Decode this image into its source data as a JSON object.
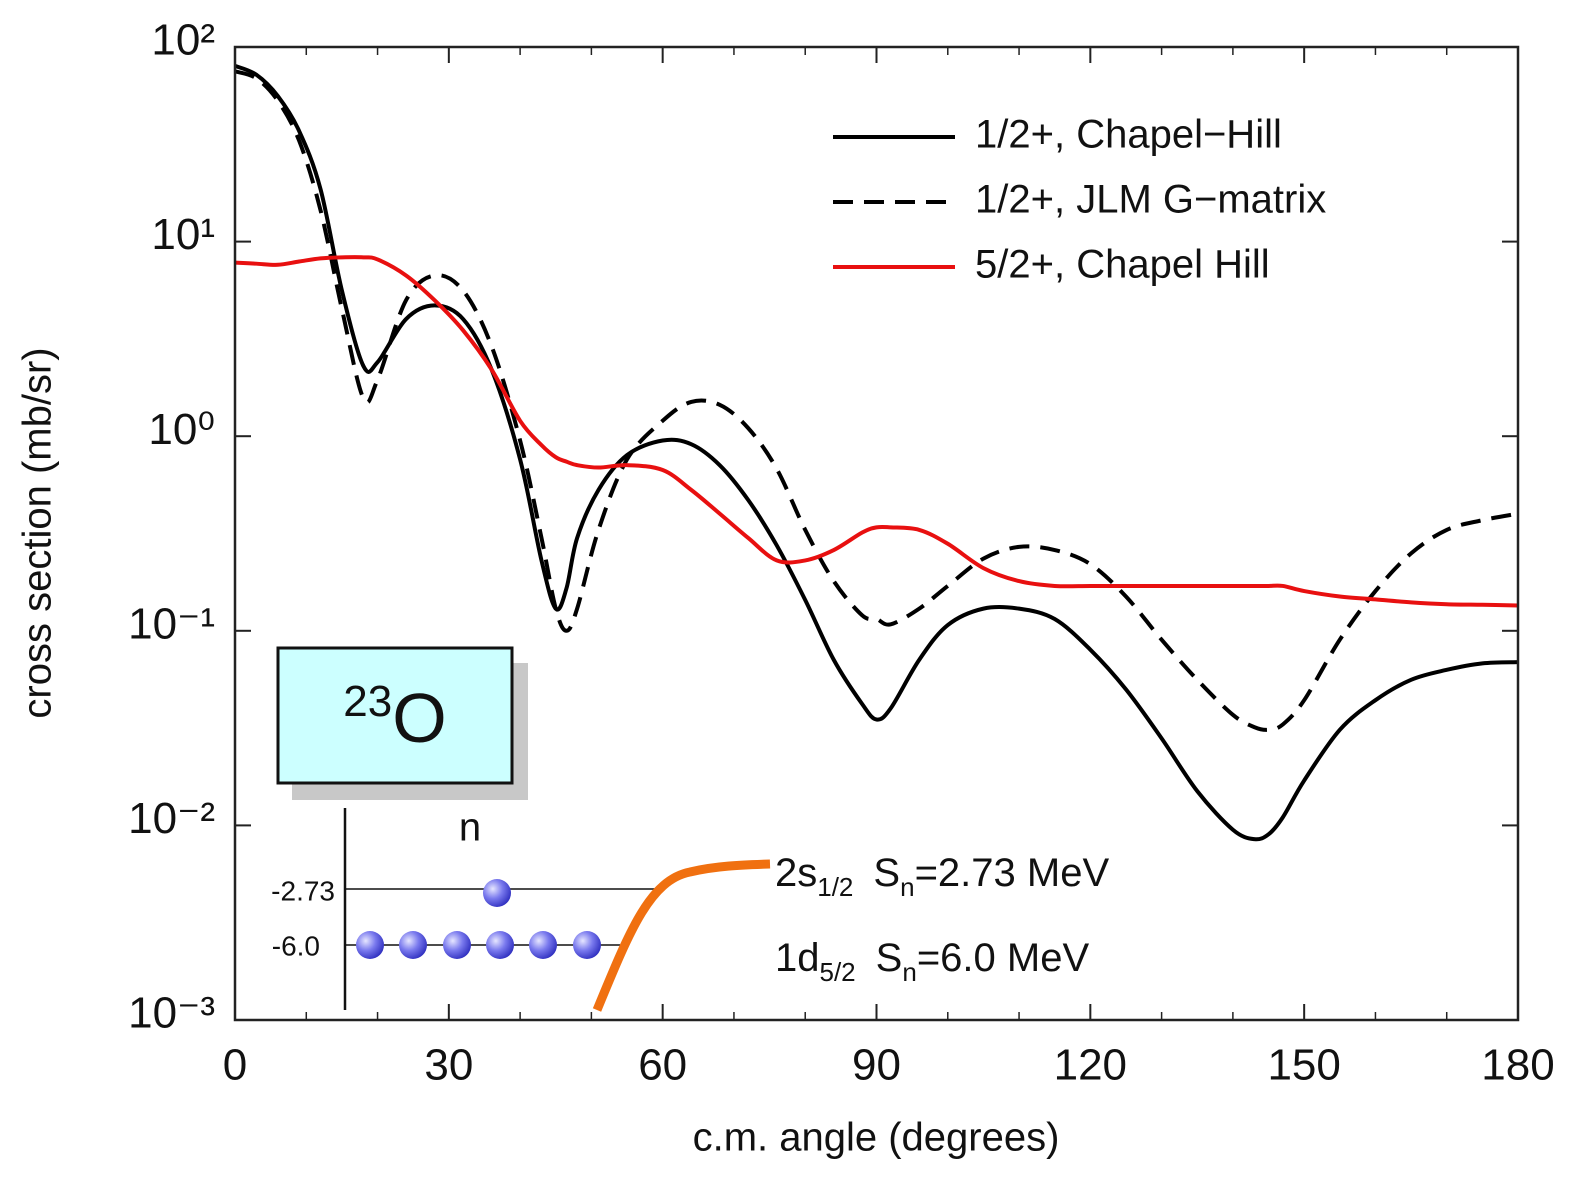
{
  "chart_data": {
    "type": "line",
    "xlabel": "c.m. angle  (degrees)",
    "ylabel": "cross section  (mb/sr)",
    "x": [
      0,
      3,
      6,
      9,
      12,
      15,
      18,
      20,
      24,
      28,
      32,
      36,
      40,
      43,
      45,
      46.5,
      48,
      51,
      55,
      60,
      64,
      68,
      72,
      76,
      80,
      84,
      88,
      90,
      92,
      96,
      100,
      105,
      110,
      115,
      120,
      125,
      130,
      135,
      140,
      143,
      145,
      147,
      150,
      155,
      160,
      165,
      170,
      175,
      180
    ],
    "series": [
      {
        "name": "1/2+, Chapel−Hill",
        "color": "#000000",
        "dash": "solid",
        "values": [
          80,
          72,
          56,
          37,
          18.6,
          5.6,
          2.3,
          2.4,
          4.0,
          4.7,
          4.0,
          2.2,
          0.76,
          0.23,
          0.13,
          0.165,
          0.3,
          0.53,
          0.8,
          0.95,
          0.91,
          0.71,
          0.47,
          0.275,
          0.144,
          0.071,
          0.042,
          0.035,
          0.04,
          0.071,
          0.107,
          0.13,
          0.13,
          0.115,
          0.08,
          0.05,
          0.028,
          0.015,
          0.0095,
          0.0085,
          0.009,
          0.011,
          0.017,
          0.031,
          0.044,
          0.056,
          0.063,
          0.068,
          0.069
        ]
      },
      {
        "name": "1/2+, JLM G−matrix",
        "color": "#000000",
        "dash": "dashed",
        "values": [
          75,
          69,
          53,
          33,
          14.5,
          4.5,
          1.57,
          1.95,
          5.0,
          6.7,
          5.6,
          2.9,
          0.95,
          0.3,
          0.13,
          0.1,
          0.13,
          0.33,
          0.76,
          1.2,
          1.5,
          1.45,
          1.1,
          0.68,
          0.33,
          0.18,
          0.12,
          0.115,
          0.108,
          0.13,
          0.17,
          0.235,
          0.27,
          0.26,
          0.22,
          0.15,
          0.09,
          0.056,
          0.037,
          0.032,
          0.031,
          0.033,
          0.044,
          0.09,
          0.16,
          0.25,
          0.33,
          0.37,
          0.4
        ]
      },
      {
        "name": "5/2+, Chapel Hill",
        "color": "#e81010",
        "dash": "solid",
        "values": [
          7.8,
          7.7,
          7.6,
          7.9,
          8.2,
          8.3,
          8.3,
          8.1,
          6.7,
          5.0,
          3.5,
          2.2,
          1.2,
          0.9,
          0.78,
          0.74,
          0.71,
          0.69,
          0.71,
          0.67,
          0.53,
          0.4,
          0.3,
          0.23,
          0.23,
          0.26,
          0.32,
          0.34,
          0.34,
          0.33,
          0.28,
          0.21,
          0.18,
          0.17,
          0.17,
          0.17,
          0.17,
          0.17,
          0.17,
          0.17,
          0.17,
          0.17,
          0.16,
          0.15,
          0.145,
          0.14,
          0.137,
          0.136,
          0.135
        ]
      }
    ],
    "xlim": [
      0,
      180
    ],
    "xticks": [
      0,
      30,
      60,
      90,
      120,
      150,
      180
    ],
    "xminorticks": [
      10,
      20,
      40,
      50,
      70,
      80,
      100,
      110,
      130,
      140,
      160,
      170
    ],
    "ylim": [
      0.001,
      100
    ],
    "yscale": "log",
    "yticks": [
      {
        "value": 0.001,
        "label": "10⁻³"
      },
      {
        "value": 0.01,
        "label": "10⁻²"
      },
      {
        "value": 0.1,
        "label": "10⁻¹"
      },
      {
        "value": 1,
        "label": "10⁰"
      },
      {
        "value": 10,
        "label": "10¹"
      },
      {
        "value": 100,
        "label": "10²"
      }
    ],
    "legend": "upper right",
    "inset": {
      "mass": "23",
      "nucleus": "O",
      "particle": "n",
      "levels": [
        {
          "energy": "-2.73",
          "orbital": "2s",
          "orbital_sub": "1/2",
          "sep": "S",
          "sep_sub": "n",
          "sep_text": "=2.73 MeV"
        },
        {
          "energy": "-6.0",
          "orbital": "1d",
          "orbital_sub": "5/2",
          "sep": "S",
          "sep_sub": "n",
          "sep_text": "=6.0 MeV"
        }
      ]
    }
  }
}
